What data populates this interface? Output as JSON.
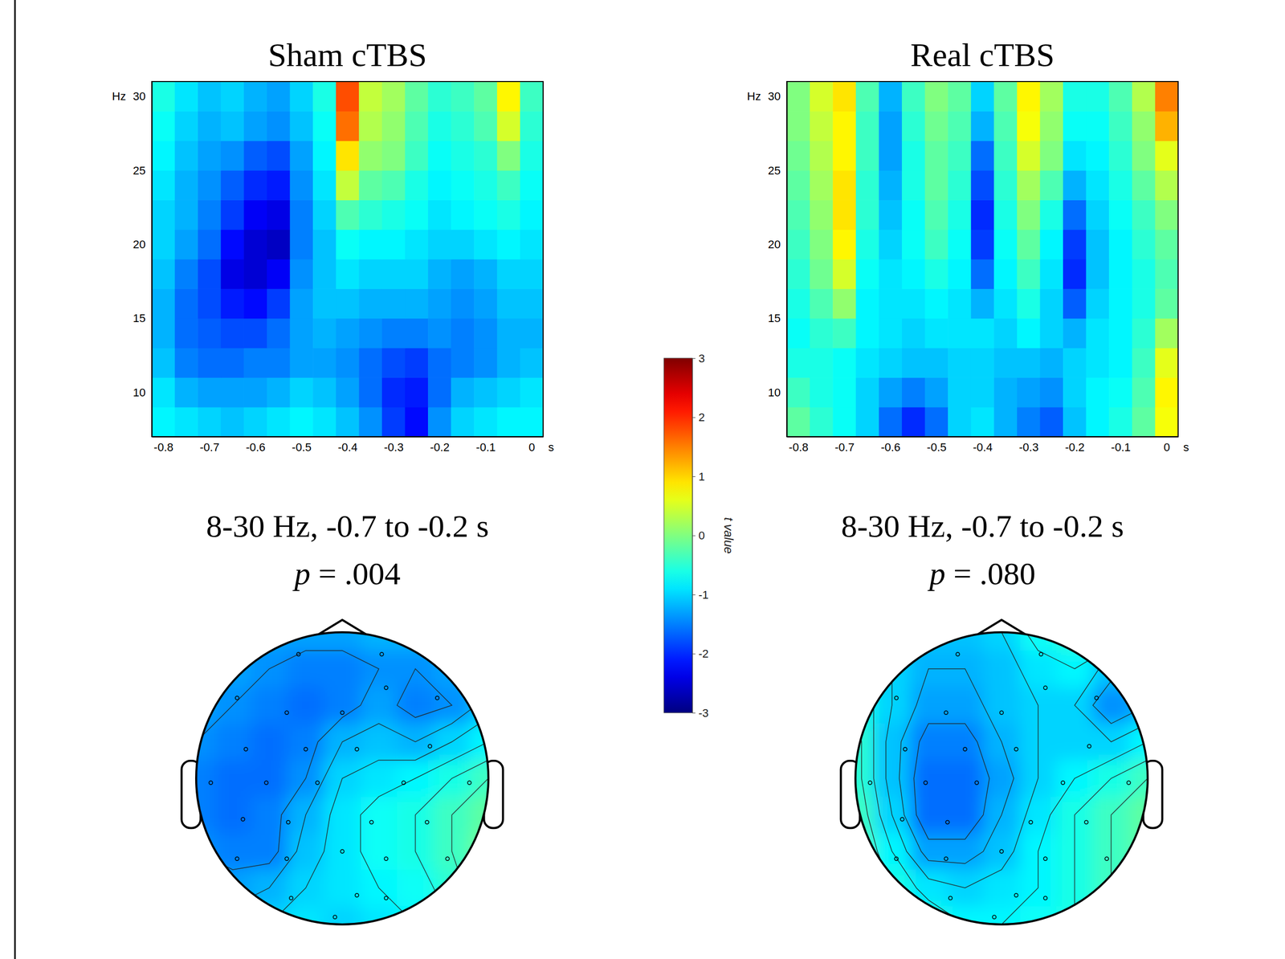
{
  "chart_data": [
    {
      "type": "heatmap",
      "title": "Sham cTBS",
      "x_label": "s",
      "y_label": "Hz",
      "xlim": [
        -0.825,
        0.025
      ],
      "xticks": [
        -0.8,
        -0.7,
        -0.6,
        -0.5,
        -0.4,
        -0.3,
        -0.2,
        -0.1,
        0
      ],
      "ylim": [
        7,
        31
      ],
      "yticks": [
        10,
        15,
        20,
        25,
        30
      ],
      "x": [
        -0.8,
        -0.75,
        -0.7,
        -0.65,
        -0.6,
        -0.55,
        -0.5,
        -0.45,
        -0.4,
        -0.35,
        -0.3,
        -0.25,
        -0.2,
        -0.15,
        -0.1,
        -0.05,
        0
      ],
      "y": [
        8,
        10,
        12,
        14,
        16,
        18,
        20,
        22,
        24,
        26,
        28,
        30
      ],
      "z": [
        [
          -0.8,
          -0.9,
          -1.0,
          -1.1,
          -1.0,
          -0.9,
          -0.8,
          -0.9,
          -1.1,
          -1.4,
          -1.9,
          -2.2,
          -1.4,
          -1.0,
          -0.9,
          -0.8,
          -0.8
        ],
        [
          -0.9,
          -1.2,
          -1.3,
          -1.3,
          -1.3,
          -1.2,
          -1.0,
          -1.1,
          -1.3,
          -1.6,
          -2.0,
          -2.1,
          -1.6,
          -1.2,
          -1.1,
          -1.0,
          -0.9
        ],
        [
          -1.1,
          -1.5,
          -1.6,
          -1.6,
          -1.5,
          -1.5,
          -1.3,
          -1.3,
          -1.4,
          -1.6,
          -1.8,
          -1.9,
          -1.6,
          -1.5,
          -1.4,
          -1.2,
          -1.1
        ],
        [
          -1.2,
          -1.6,
          -1.7,
          -1.8,
          -1.8,
          -1.6,
          -1.3,
          -1.2,
          -1.3,
          -1.4,
          -1.5,
          -1.5,
          -1.4,
          -1.5,
          -1.4,
          -1.2,
          -1.2
        ],
        [
          -1.2,
          -1.6,
          -1.8,
          -2.1,
          -2.2,
          -1.9,
          -1.3,
          -1.1,
          -1.1,
          -1.2,
          -1.2,
          -1.2,
          -1.3,
          -1.4,
          -1.3,
          -1.1,
          -1.1
        ],
        [
          -1.1,
          -1.5,
          -1.8,
          -2.4,
          -2.5,
          -2.3,
          -1.4,
          -1.1,
          -0.9,
          -1.0,
          -1.0,
          -1.0,
          -1.2,
          -1.3,
          -1.2,
          -1.0,
          -1.0
        ],
        [
          -1.0,
          -1.3,
          -1.6,
          -2.2,
          -2.5,
          -2.6,
          -1.5,
          -1.1,
          -0.7,
          -0.8,
          -0.8,
          -0.9,
          -1.0,
          -1.0,
          -0.9,
          -0.8,
          -0.9
        ],
        [
          -1.0,
          -1.2,
          -1.5,
          -1.9,
          -2.3,
          -2.4,
          -1.5,
          -1.0,
          -0.3,
          -0.5,
          -0.6,
          -0.7,
          -0.9,
          -0.8,
          -0.7,
          -0.6,
          -0.8
        ],
        [
          -0.9,
          -1.2,
          -1.4,
          -1.7,
          -2.0,
          -2.1,
          -1.4,
          -0.9,
          0.4,
          -0.2,
          -0.3,
          -0.6,
          -0.8,
          -0.7,
          -0.6,
          -0.4,
          -0.7
        ],
        [
          -0.8,
          -1.1,
          -1.3,
          -1.4,
          -1.7,
          -1.8,
          -1.3,
          -0.8,
          0.9,
          0.1,
          0,
          -0.4,
          -0.7,
          -0.6,
          -0.5,
          0,
          -0.6
        ],
        [
          -0.7,
          -1.0,
          -1.2,
          -1.1,
          -1.3,
          -1.4,
          -1.1,
          -0.7,
          1.6,
          0.3,
          0.1,
          -0.3,
          -0.6,
          -0.5,
          -0.3,
          0.5,
          -0.5
        ],
        [
          -0.6,
          -0.9,
          -1.1,
          -1.0,
          -1.2,
          -1.3,
          -1.0,
          -0.6,
          1.8,
          0.4,
          0.2,
          -0.2,
          -0.5,
          -0.4,
          -0.2,
          0.8,
          -0.4
        ]
      ],
      "annotations": [
        "8-30 Hz, -0.7 to -0.2 s",
        "p = .004"
      ],
      "topomap": {
        "x": [
          -1,
          -0.75,
          -0.5,
          -0.25,
          0,
          0.25,
          0.5,
          0.75,
          1
        ],
        "y": [
          1,
          0.75,
          0.5,
          0.25,
          0,
          -0.25,
          -0.5,
          -0.75,
          -1
        ],
        "z": [
          [
            -1.1,
            -1.2,
            -1.3,
            -1.3,
            -1.3,
            -1.2,
            -1.2,
            -1.1,
            -1.0
          ],
          [
            -1.2,
            -1.3,
            -1.4,
            -1.5,
            -1.5,
            -1.4,
            -1.4,
            -1.3,
            -1.1
          ],
          [
            -1.3,
            -1.4,
            -1.5,
            -1.6,
            -1.5,
            -1.3,
            -1.5,
            -1.4,
            -1.1
          ],
          [
            -1.4,
            -1.5,
            -1.6,
            -1.5,
            -1.2,
            -1.1,
            -1.2,
            -1.0,
            -0.8
          ],
          [
            -1.5,
            -1.6,
            -1.6,
            -1.4,
            -1.0,
            -0.9,
            -0.8,
            -0.6,
            -0.4
          ],
          [
            -1.5,
            -1.6,
            -1.5,
            -1.2,
            -0.9,
            -0.7,
            -0.6,
            -0.4,
            -0.2
          ],
          [
            -1.4,
            -1.5,
            -1.5,
            -1.1,
            -0.9,
            -0.7,
            -0.6,
            -0.4,
            -0.1
          ],
          [
            -1.3,
            -1.3,
            -1.2,
            -1.0,
            -0.9,
            -0.8,
            -0.7,
            -0.5,
            -0.2
          ],
          [
            -1.1,
            -1.1,
            -1.0,
            -0.9,
            -1.0,
            -0.9,
            -0.8,
            -0.6,
            -0.4
          ]
        ],
        "electrodes": [
          [
            -0.3,
            0.85
          ],
          [
            0.27,
            0.85
          ],
          [
            -0.72,
            0.55
          ],
          [
            -0.38,
            0.45
          ],
          [
            0,
            0.45
          ],
          [
            0.3,
            0.62
          ],
          [
            0.65,
            0.55
          ],
          [
            -0.66,
            0.2
          ],
          [
            -0.25,
            0.2
          ],
          [
            0.1,
            0.2
          ],
          [
            0.6,
            0.22
          ],
          [
            -0.9,
            -0.03
          ],
          [
            -0.52,
            -0.03
          ],
          [
            -0.17,
            -0.03
          ],
          [
            0.42,
            -0.03
          ],
          [
            0.87,
            -0.03
          ],
          [
            -0.68,
            -0.28
          ],
          [
            -0.37,
            -0.3
          ],
          [
            0.2,
            -0.3
          ],
          [
            0.58,
            -0.3
          ],
          [
            -0.72,
            -0.55
          ],
          [
            -0.38,
            -0.55
          ],
          [
            0,
            -0.5
          ],
          [
            0.3,
            -0.55
          ],
          [
            0.72,
            -0.55
          ],
          [
            -0.35,
            -0.82
          ],
          [
            0.1,
            -0.8
          ],
          [
            0.3,
            -0.82
          ],
          [
            -0.05,
            -0.95
          ]
        ]
      }
    },
    {
      "type": "heatmap",
      "title": "Real cTBS",
      "x_label": "s",
      "y_label": "Hz",
      "xlim": [
        -0.825,
        0.025
      ],
      "xticks": [
        -0.8,
        -0.7,
        -0.6,
        -0.5,
        -0.4,
        -0.3,
        -0.2,
        -0.1,
        0
      ],
      "ylim": [
        7,
        31
      ],
      "yticks": [
        10,
        15,
        20,
        25,
        30
      ],
      "x": [
        -0.8,
        -0.75,
        -0.7,
        -0.65,
        -0.6,
        -0.55,
        -0.5,
        -0.45,
        -0.4,
        -0.35,
        -0.3,
        -0.25,
        -0.2,
        -0.15,
        -0.1,
        -0.05,
        0
      ],
      "y": [
        8,
        10,
        12,
        14,
        16,
        18,
        20,
        22,
        24,
        26,
        28,
        30
      ],
      "z": [
        [
          -0.2,
          -0.5,
          -0.7,
          -1.0,
          -1.6,
          -2.0,
          -1.6,
          -1.0,
          -0.9,
          -1.2,
          -1.5,
          -1.7,
          -1.1,
          -0.8,
          -0.6,
          -0.2,
          0.7
        ],
        [
          -0.4,
          -0.6,
          -0.7,
          -1.0,
          -1.3,
          -1.5,
          -1.3,
          -1.0,
          -1.0,
          -1.2,
          -1.3,
          -1.4,
          -1.0,
          -0.8,
          -0.7,
          -0.3,
          0.8
        ],
        [
          -0.6,
          -0.6,
          -0.7,
          -0.9,
          -1.0,
          -1.1,
          -1.1,
          -1.0,
          -1.0,
          -1.1,
          -1.1,
          -1.2,
          -1.0,
          -0.9,
          -0.8,
          -0.4,
          0.6
        ],
        [
          -0.7,
          -0.5,
          -0.4,
          -0.8,
          -0.9,
          -1.0,
          -0.9,
          -0.9,
          -0.9,
          -1.0,
          -0.8,
          -1.0,
          -1.2,
          -0.9,
          -0.8,
          -0.5,
          0.2
        ],
        [
          -0.6,
          -0.3,
          0.1,
          -0.8,
          -0.9,
          -0.9,
          -0.8,
          -0.9,
          -1.2,
          -0.9,
          -0.6,
          -1.0,
          -1.7,
          -1.0,
          -0.8,
          -0.6,
          -0.2
        ],
        [
          -0.5,
          -0.1,
          0.5,
          -0.7,
          -0.9,
          -0.8,
          -0.6,
          -0.8,
          -1.6,
          -0.8,
          -0.4,
          -0.9,
          -2.0,
          -1.1,
          -0.8,
          -0.6,
          -0.3
        ],
        [
          -0.4,
          0,
          0.8,
          -0.6,
          -1.0,
          -0.7,
          -0.4,
          -0.7,
          -1.9,
          -0.7,
          -0.2,
          -0.8,
          -1.9,
          -1.1,
          -0.8,
          -0.5,
          -0.2
        ],
        [
          -0.3,
          0.1,
          0.9,
          -0.5,
          -1.1,
          -0.7,
          -0.3,
          -0.6,
          -2.0,
          -0.6,
          0,
          -0.6,
          -1.6,
          -1.0,
          -0.7,
          -0.4,
          0
        ],
        [
          -0.2,
          0.2,
          0.9,
          -0.5,
          -1.2,
          -0.6,
          -0.2,
          -0.5,
          -1.8,
          -0.5,
          0.2,
          -0.3,
          -1.2,
          -0.9,
          -0.6,
          -0.2,
          0.3
        ],
        [
          -0.1,
          0.3,
          0.8,
          -0.4,
          -1.3,
          -0.6,
          -0.2,
          -0.4,
          -1.6,
          -0.4,
          0.5,
          0,
          -0.9,
          -0.8,
          -0.5,
          0,
          0.6
        ],
        [
          0,
          0.4,
          0.8,
          -0.4,
          -1.3,
          -0.5,
          -0.1,
          -0.3,
          -1.2,
          -0.3,
          0.7,
          0.1,
          -0.7,
          -0.7,
          -0.4,
          0.1,
          1.2
        ],
        [
          0,
          0.5,
          0.9,
          -0.3,
          -1.2,
          -0.4,
          0,
          -0.2,
          -1.0,
          -0.2,
          0.8,
          0.2,
          -0.6,
          -0.6,
          -0.3,
          0.3,
          1.5
        ]
      ],
      "annotations": [
        "8-30 Hz, -0.7 to -0.2 s",
        "p = .080"
      ],
      "topomap": {
        "x": [
          -1,
          -0.75,
          -0.5,
          -0.25,
          0,
          0.25,
          0.5,
          0.75,
          1
        ],
        "y": [
          1,
          0.75,
          0.5,
          0.25,
          0,
          -0.25,
          -0.5,
          -0.75,
          -1
        ],
        "z": [
          [
            -0.8,
            -1.0,
            -1.1,
            -1.1,
            -1.0,
            -0.7,
            -0.5,
            -0.6,
            -0.8
          ],
          [
            -0.7,
            -1.0,
            -1.2,
            -1.2,
            -1.1,
            -0.9,
            -0.8,
            -1.1,
            -1.3
          ],
          [
            -0.6,
            -1.0,
            -1.3,
            -1.3,
            -1.1,
            -1.0,
            -1.0,
            -1.4,
            -1.2
          ],
          [
            -0.5,
            -1.1,
            -1.5,
            -1.5,
            -1.2,
            -1.0,
            -1.0,
            -1.0,
            -0.8
          ],
          [
            -0.5,
            -1.1,
            -1.6,
            -1.6,
            -1.3,
            -1.0,
            -0.8,
            -0.6,
            -0.4
          ],
          [
            -0.4,
            -1.0,
            -1.6,
            -1.6,
            -1.2,
            -0.9,
            -0.6,
            -0.4,
            -0.2
          ],
          [
            -0.3,
            -0.8,
            -1.3,
            -1.3,
            -1.1,
            -0.8,
            -0.6,
            -0.4,
            -0.2
          ],
          [
            -0.2,
            -0.6,
            -0.9,
            -1.0,
            -0.9,
            -0.8,
            -0.6,
            -0.4,
            -0.3
          ],
          [
            -0.2,
            -0.4,
            -0.6,
            -0.8,
            -0.8,
            -0.7,
            -0.6,
            -0.5,
            -0.4
          ]
        ],
        "electrodes": [
          [
            -0.3,
            0.85
          ],
          [
            0.27,
            0.85
          ],
          [
            -0.72,
            0.55
          ],
          [
            -0.38,
            0.45
          ],
          [
            0,
            0.45
          ],
          [
            0.3,
            0.62
          ],
          [
            0.65,
            0.55
          ],
          [
            -0.66,
            0.2
          ],
          [
            -0.25,
            0.2
          ],
          [
            0.1,
            0.2
          ],
          [
            0.6,
            0.22
          ],
          [
            -0.9,
            -0.03
          ],
          [
            -0.52,
            -0.03
          ],
          [
            -0.17,
            -0.03
          ],
          [
            0.42,
            -0.03
          ],
          [
            0.87,
            -0.03
          ],
          [
            -0.68,
            -0.28
          ],
          [
            -0.37,
            -0.3
          ],
          [
            0.2,
            -0.3
          ],
          [
            0.58,
            -0.3
          ],
          [
            -0.72,
            -0.55
          ],
          [
            -0.38,
            -0.55
          ],
          [
            0,
            -0.5
          ],
          [
            0.3,
            -0.55
          ],
          [
            0.72,
            -0.55
          ],
          [
            -0.35,
            -0.82
          ],
          [
            0.1,
            -0.8
          ],
          [
            0.3,
            -0.82
          ],
          [
            -0.05,
            -0.95
          ]
        ]
      }
    },
    {
      "type": "colorbar",
      "title": "t value",
      "zlim": [
        -3,
        3
      ],
      "zticks": [
        -3,
        -2,
        -1,
        0,
        1,
        2,
        3
      ]
    }
  ]
}
